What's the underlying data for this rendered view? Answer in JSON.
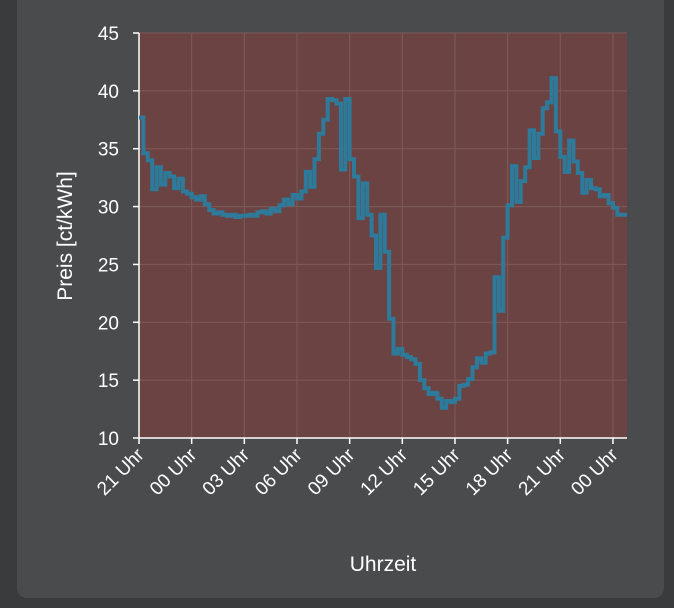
{
  "chart_data": {
    "type": "line",
    "step": true,
    "xlabel": "Uhrzeit",
    "ylabel": "Preis [ct/kWh]",
    "ylim": [
      10,
      45
    ],
    "yticks": [
      10,
      15,
      20,
      25,
      30,
      35,
      40,
      45
    ],
    "x_tick_labels": [
      "21 Uhr",
      "00 Uhr",
      "03 Uhr",
      "06 Uhr",
      "09 Uhr",
      "12 Uhr",
      "15 Uhr",
      "18 Uhr",
      "21 Uhr",
      "00 Uhr"
    ],
    "x_tick_hours": [
      0,
      3,
      6,
      9,
      12,
      15,
      18,
      21,
      24,
      27
    ],
    "xlim_hours": [
      0,
      27.8
    ],
    "grid": true,
    "colors": {
      "background": "#6b4343",
      "line": "#2e7a9a",
      "grid": "#7e5a5a",
      "card": "#4a4b4d"
    },
    "series": [
      {
        "values": [
          [
            0.0,
            37.7
          ],
          [
            0.25,
            34.6
          ],
          [
            0.5,
            34.0
          ],
          [
            0.75,
            31.5
          ],
          [
            1.0,
            33.4
          ],
          [
            1.25,
            31.9
          ],
          [
            1.5,
            32.9
          ],
          [
            1.75,
            32.6
          ],
          [
            2.0,
            31.6
          ],
          [
            2.25,
            32.4
          ],
          [
            2.5,
            31.3
          ],
          [
            2.75,
            31.1
          ],
          [
            3.0,
            30.8
          ],
          [
            3.25,
            30.6
          ],
          [
            3.5,
            30.9
          ],
          [
            3.75,
            30.2
          ],
          [
            4.0,
            29.7
          ],
          [
            4.25,
            29.4
          ],
          [
            4.5,
            29.5
          ],
          [
            4.75,
            29.3
          ],
          [
            5.0,
            29.2
          ],
          [
            5.25,
            29.3
          ],
          [
            5.5,
            29.1
          ],
          [
            5.75,
            29.2
          ],
          [
            6.0,
            29.2
          ],
          [
            6.25,
            29.3
          ],
          [
            6.5,
            29.2
          ],
          [
            6.75,
            29.5
          ],
          [
            7.0,
            29.6
          ],
          [
            7.25,
            29.4
          ],
          [
            7.5,
            29.8
          ],
          [
            7.75,
            29.6
          ],
          [
            8.0,
            30.1
          ],
          [
            8.25,
            30.6
          ],
          [
            8.5,
            30.2
          ],
          [
            8.75,
            31.0
          ],
          [
            9.0,
            30.7
          ],
          [
            9.25,
            31.3
          ],
          [
            9.5,
            33.0
          ],
          [
            9.75,
            31.7
          ],
          [
            10.0,
            34.1
          ],
          [
            10.25,
            36.3
          ],
          [
            10.5,
            37.5
          ],
          [
            10.75,
            39.3
          ],
          [
            11.0,
            39.2
          ],
          [
            11.25,
            38.9
          ],
          [
            11.5,
            33.2
          ],
          [
            11.75,
            39.3
          ],
          [
            12.0,
            34.1
          ],
          [
            12.25,
            32.6
          ],
          [
            12.5,
            29.0
          ],
          [
            12.75,
            32.0
          ],
          [
            13.0,
            29.3
          ],
          [
            13.25,
            27.5
          ],
          [
            13.5,
            24.7
          ],
          [
            13.75,
            29.3
          ],
          [
            14.0,
            26.1
          ],
          [
            14.25,
            20.3
          ],
          [
            14.5,
            17.3
          ],
          [
            14.75,
            17.7
          ],
          [
            15.0,
            17.2
          ],
          [
            15.25,
            17.0
          ],
          [
            15.5,
            16.8
          ],
          [
            15.75,
            16.4
          ],
          [
            16.0,
            15.0
          ],
          [
            16.25,
            14.3
          ],
          [
            16.5,
            13.8
          ],
          [
            16.75,
            13.9
          ],
          [
            17.0,
            13.4
          ],
          [
            17.25,
            12.6
          ],
          [
            17.5,
            13.2
          ],
          [
            17.75,
            13.1
          ],
          [
            18.0,
            13.4
          ],
          [
            18.25,
            14.5
          ],
          [
            18.5,
            14.6
          ],
          [
            18.75,
            15.1
          ],
          [
            19.0,
            16.1
          ],
          [
            19.25,
            16.9
          ],
          [
            19.5,
            16.5
          ],
          [
            19.75,
            17.3
          ],
          [
            20.0,
            17.4
          ],
          [
            20.25,
            23.9
          ],
          [
            20.5,
            21.0
          ],
          [
            20.75,
            27.3
          ],
          [
            21.0,
            30.1
          ],
          [
            21.25,
            33.5
          ],
          [
            21.5,
            30.4
          ],
          [
            21.75,
            32.2
          ],
          [
            22.0,
            33.4
          ],
          [
            22.25,
            36.6
          ],
          [
            22.5,
            34.2
          ],
          [
            22.75,
            36.3
          ],
          [
            23.0,
            38.5
          ],
          [
            23.25,
            39.0
          ],
          [
            23.5,
            41.1
          ],
          [
            23.75,
            36.5
          ],
          [
            24.0,
            34.3
          ],
          [
            24.25,
            33.0
          ],
          [
            24.5,
            35.7
          ],
          [
            24.75,
            33.9
          ],
          [
            25.0,
            32.9
          ],
          [
            25.25,
            31.2
          ],
          [
            25.5,
            32.3
          ],
          [
            25.75,
            31.6
          ],
          [
            26.0,
            31.5
          ],
          [
            26.25,
            30.9
          ],
          [
            26.5,
            31.0
          ],
          [
            26.75,
            30.3
          ],
          [
            27.0,
            29.9
          ],
          [
            27.25,
            29.3
          ],
          [
            27.5,
            29.3
          ],
          [
            27.75,
            29.3
          ]
        ]
      }
    ]
  }
}
